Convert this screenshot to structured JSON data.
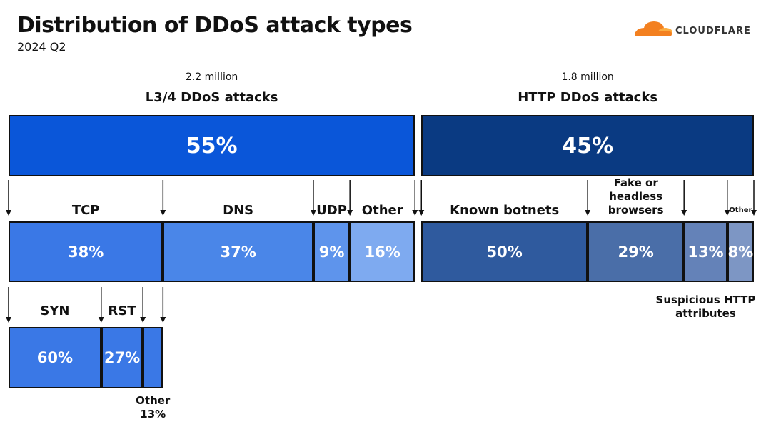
{
  "header": {
    "title": "Distribution of DDoS attack types",
    "subtitle": "2024 Q2",
    "logo": "CLOUDFLARE"
  },
  "groups": [
    {
      "count": "2.2 million",
      "name": "L3/4 DDoS attacks",
      "value": 55,
      "label": "55%",
      "color": "#0a56d9",
      "children": [
        {
          "name": "TCP",
          "value": 38,
          "label": "38%",
          "color": "#3a78e6",
          "children": [
            {
              "name": "SYN",
              "value": 60,
              "label": "60%",
              "color": "#3a78e6"
            },
            {
              "name": "RST",
              "value": 27,
              "label": "27%",
              "color": "#3a78e6"
            },
            {
              "name": "Other",
              "value": 13,
              "label": "13%",
              "color": "#3a78e6"
            }
          ]
        },
        {
          "name": "DNS",
          "value": 37,
          "label": "37%",
          "color": "#4a86e8"
        },
        {
          "name": "UDP",
          "value": 9,
          "label": "9%",
          "color": "#5e94ec"
        },
        {
          "name": "Other",
          "value": 16,
          "label": "16%",
          "color": "#7eaaf0"
        }
      ]
    },
    {
      "count": "1.8 million",
      "name": "HTTP DDoS attacks",
      "value": 45,
      "label": "45%",
      "color": "#0a3a82",
      "children": [
        {
          "name": "Known botnets",
          "value": 50,
          "label": "50%",
          "color": "#2f5a9e"
        },
        {
          "name": "Fake or headless browsers",
          "value": 29,
          "label": "29%",
          "color": "#4a6ea8"
        },
        {
          "name": "Suspicious HTTP attributes",
          "value": 13,
          "label": "13%",
          "color": "#6482b8"
        },
        {
          "name": "Other",
          "value": 8,
          "label": "8%",
          "color": "#7d96c4"
        }
      ]
    }
  ]
}
